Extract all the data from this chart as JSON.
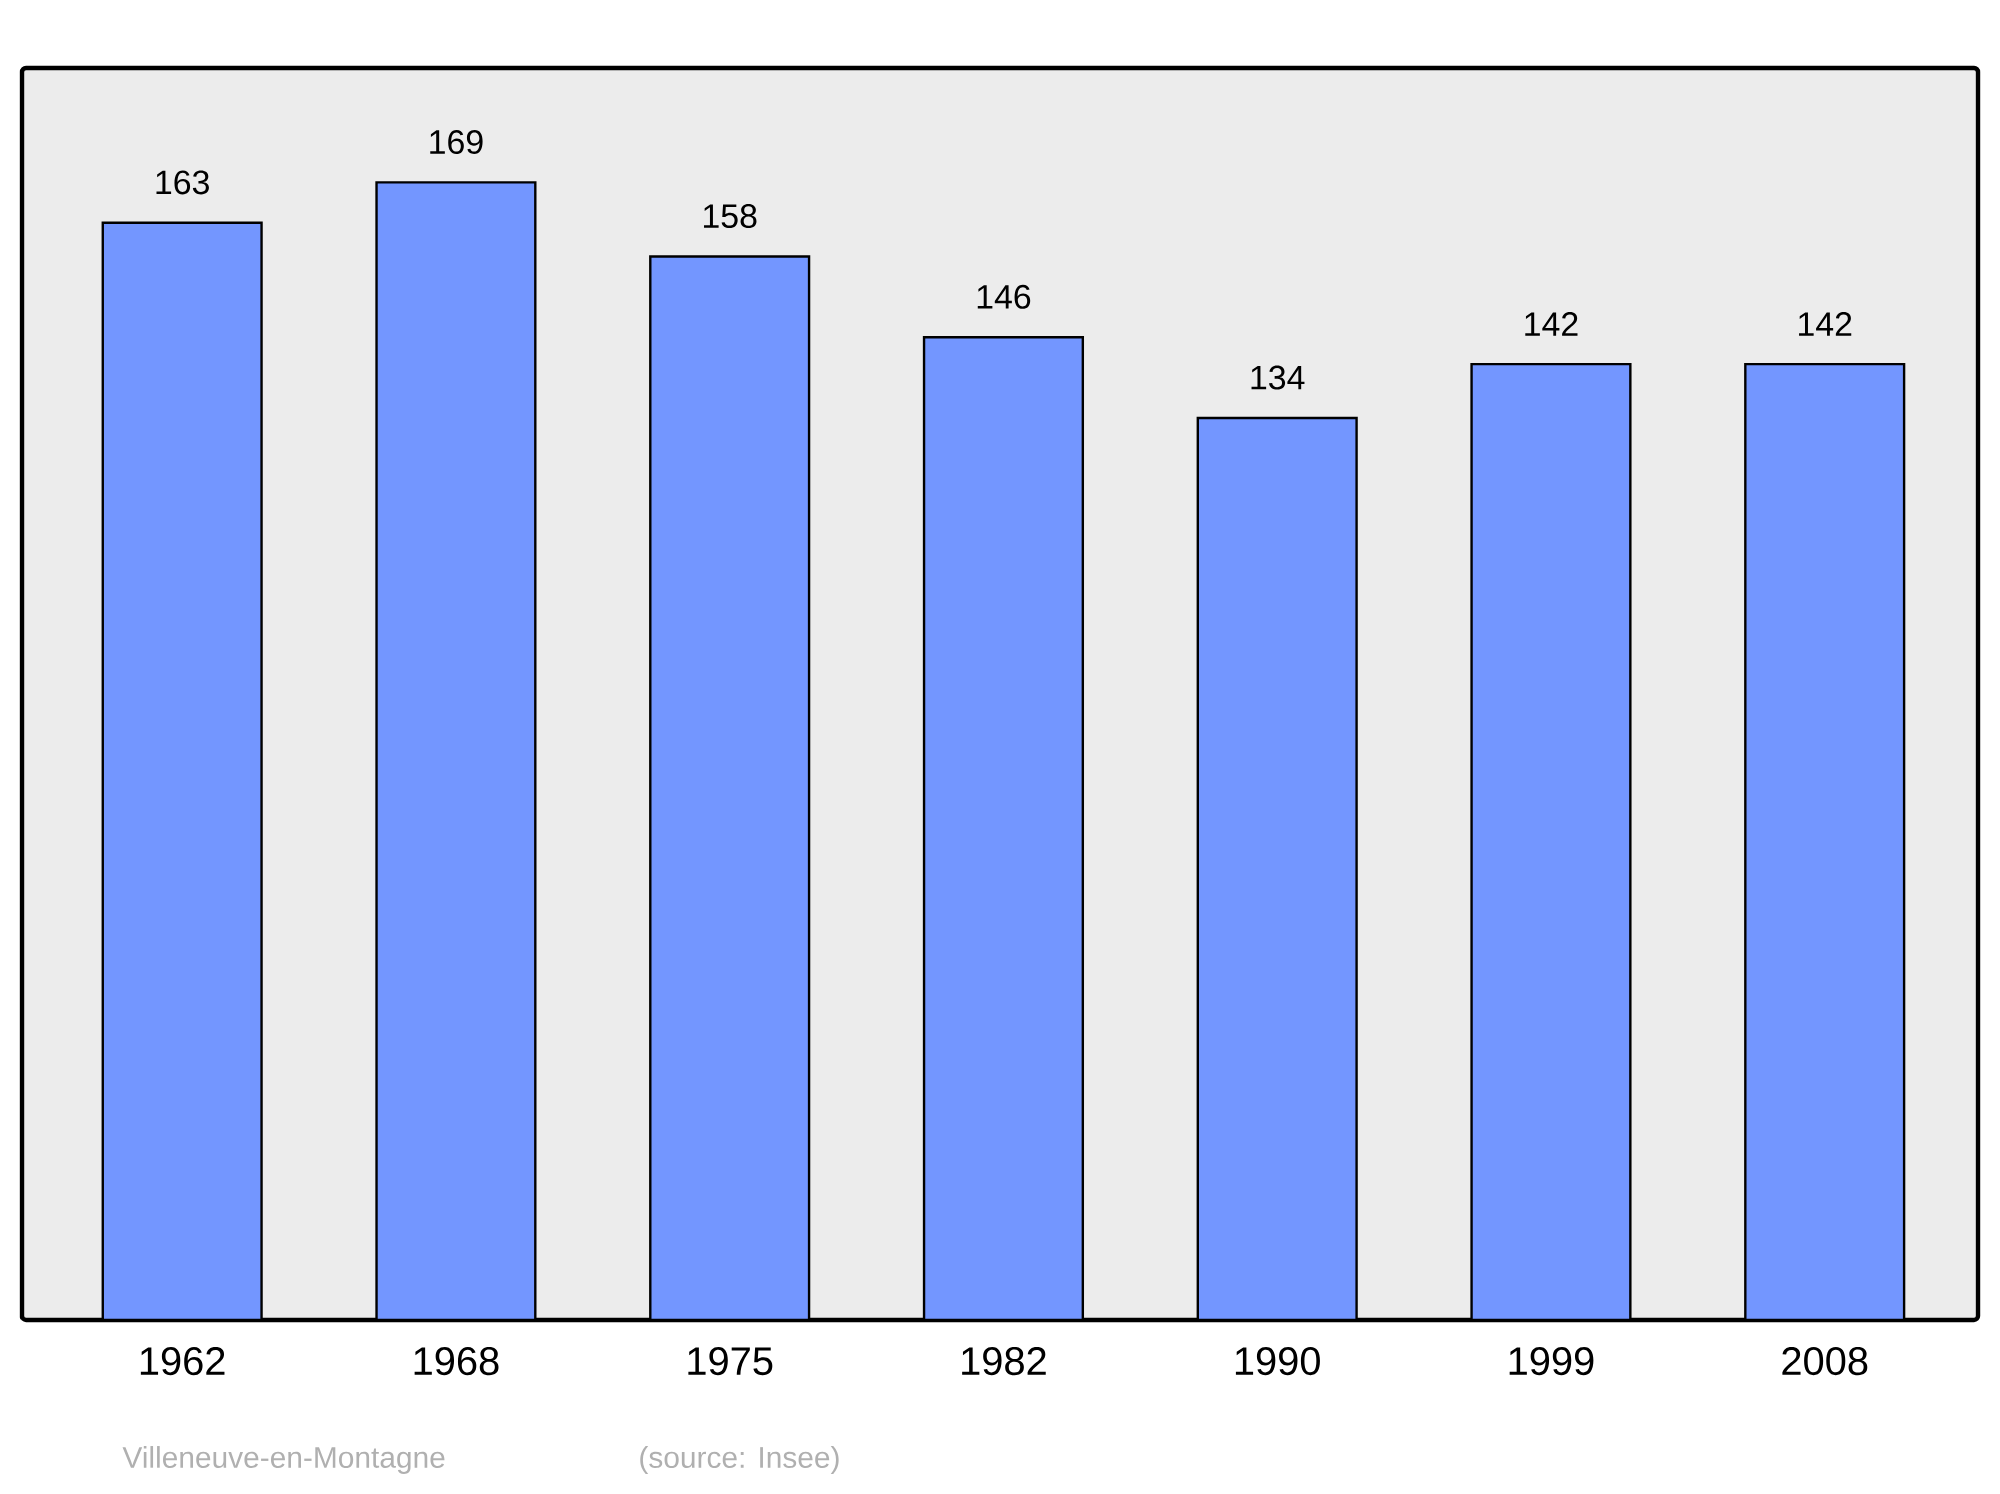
{
  "chart_data": {
    "type": "bar",
    "categories": [
      "1962",
      "1968",
      "1975",
      "1982",
      "1990",
      "1999",
      "2008"
    ],
    "values": [
      163,
      169,
      158,
      146,
      134,
      142,
      142
    ],
    "color": "#7396ff",
    "data_labels": true,
    "ylim": [
      0,
      186
    ],
    "tick_labels": "x",
    "annotations": [
      "Villeneuve-en-Montagne",
      "(source: Insee)"
    ]
  }
}
